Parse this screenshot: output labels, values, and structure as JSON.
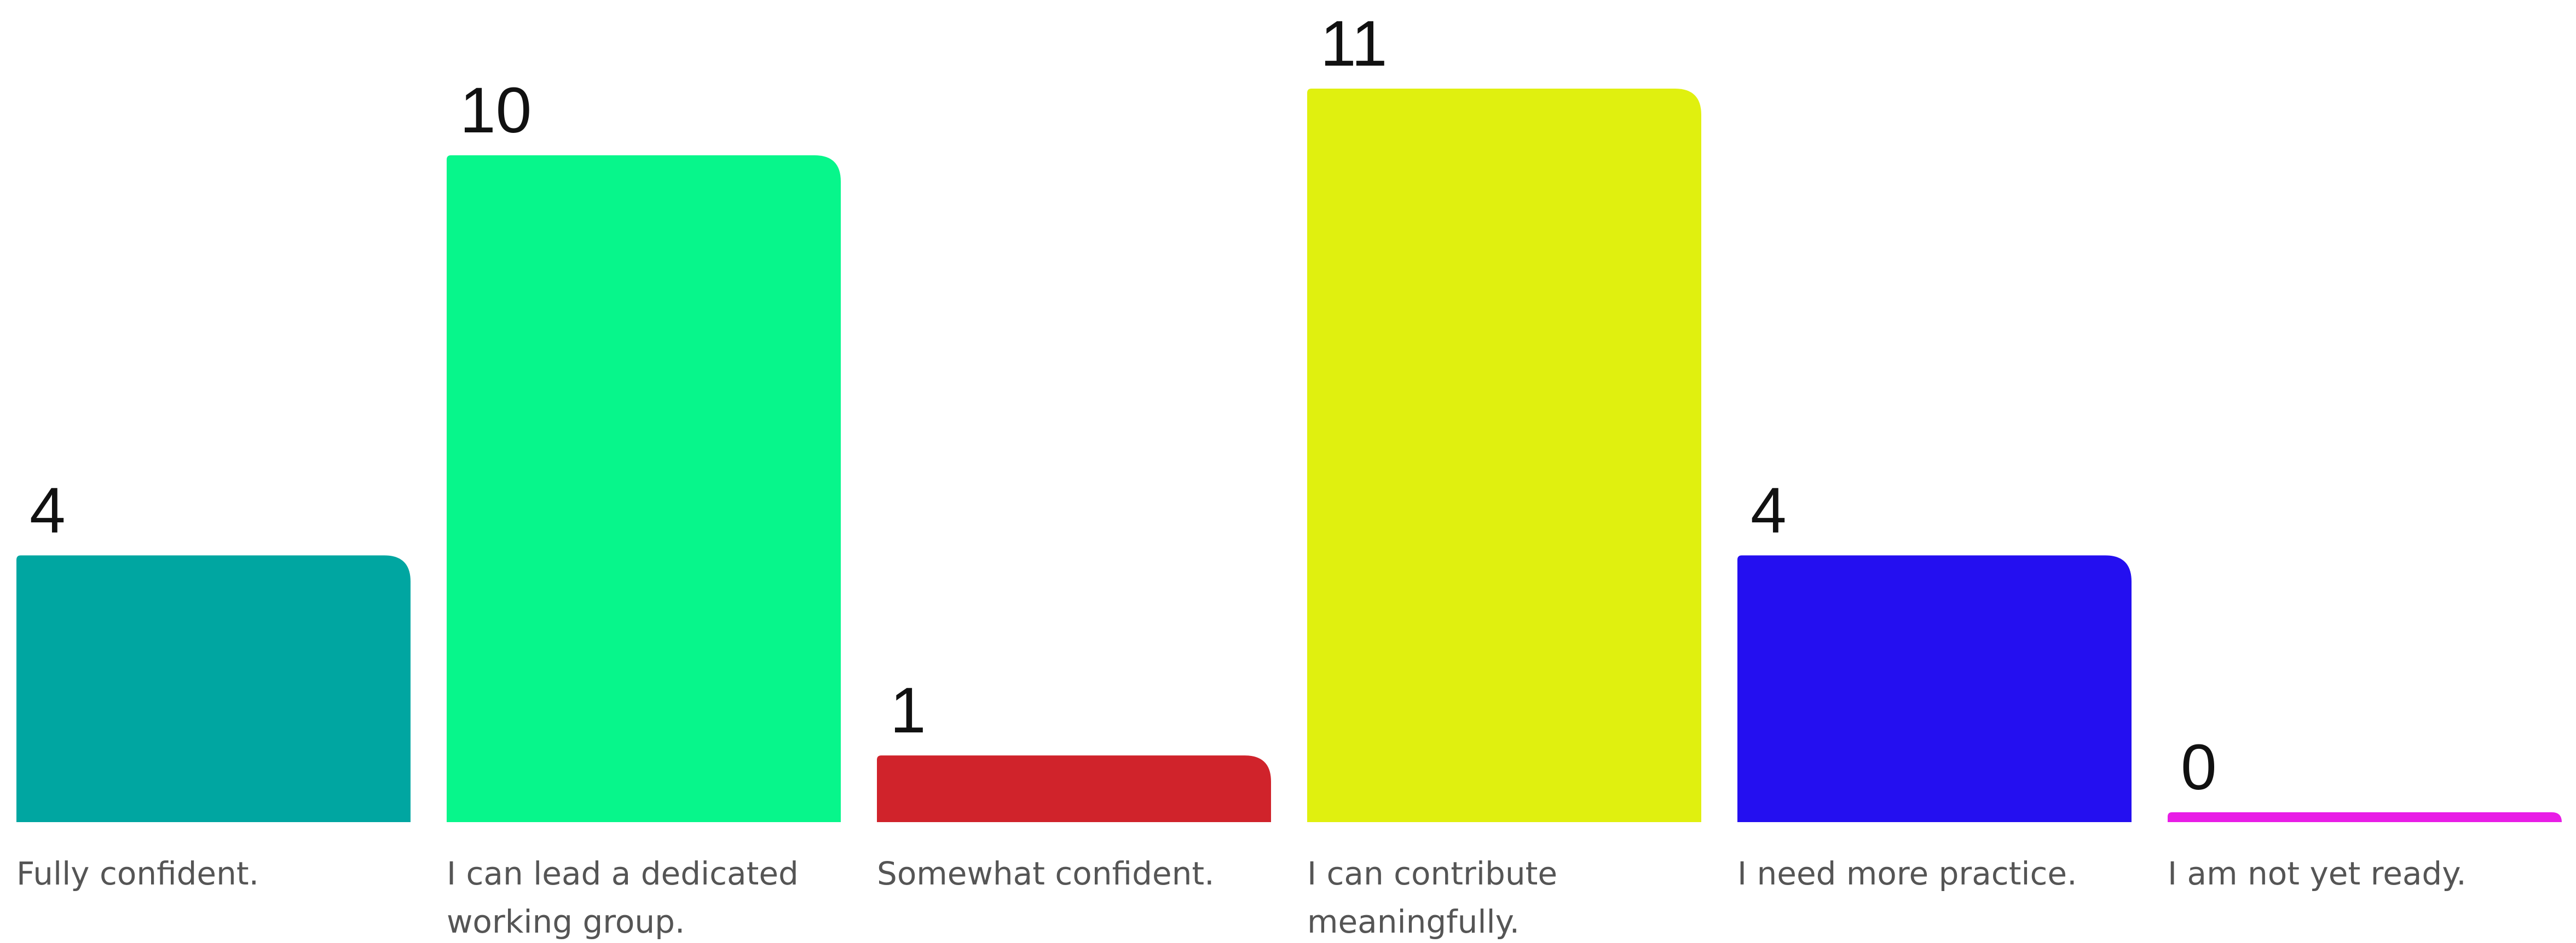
{
  "chart_data": {
    "type": "bar",
    "categories": [
      "Fully confident.",
      "I can lead a dedicated working group.",
      "Somewhat confident.",
      "I can contribute meaningfully.",
      "I need more practice.",
      "I am not yet ready."
    ],
    "values": [
      4,
      10,
      1,
      11,
      4,
      0
    ],
    "colors": [
      "#00a6a1",
      "#07f68b",
      "#d0232b",
      "#e0f00f",
      "#240ff0",
      "#e81de6"
    ]
  }
}
